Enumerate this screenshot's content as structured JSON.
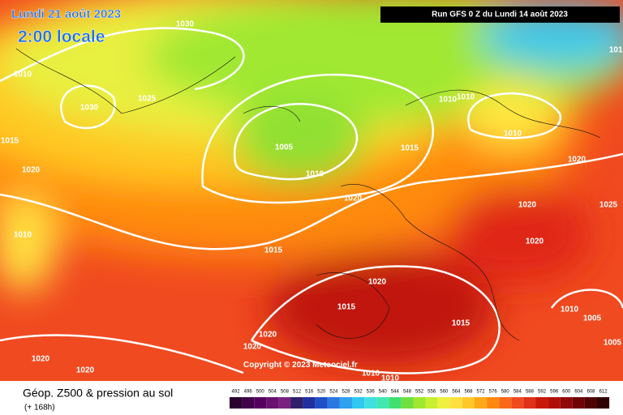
{
  "header": {
    "date": "Lundi 21 août 2023",
    "time": "2:00 locale",
    "run": "Run GFS 0 Z du Lundi 14 août 2023"
  },
  "isobar_labels": [
    "1030",
    "1010",
    "1030",
    "1025",
    "1015",
    "1020",
    "1005",
    "1010",
    "1020",
    "1015",
    "1010",
    "1010",
    "1010",
    "1020",
    "1025",
    "1020",
    "1020",
    "1010",
    "1015",
    "1020",
    "1015",
    "1015",
    "1010",
    "1005",
    "1020",
    "1020",
    "1005",
    "1020",
    "1020",
    "1010",
    "1010",
    "1010"
  ],
  "copyright": "Copyright © 2023 Meteociel.fr",
  "footer": {
    "title": "Géop. Z500 & pression au sol",
    "lead": "(+ 168h)",
    "scale": [
      492,
      496,
      500,
      504,
      508,
      512,
      516,
      520,
      524,
      528,
      532,
      536,
      540,
      544,
      548,
      552,
      556,
      560,
      564,
      568,
      572,
      576,
      580,
      584,
      588,
      592,
      596,
      600,
      604,
      608,
      612
    ]
  }
}
